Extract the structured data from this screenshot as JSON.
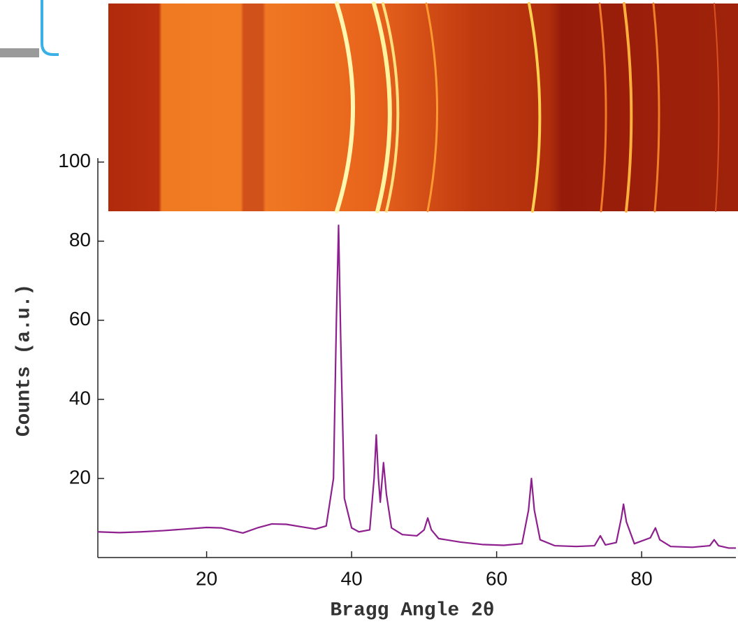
{
  "chart_data": {
    "type": "line",
    "x_label": "Bragg Angle 2θ",
    "y_label": "Counts (a.u.)",
    "color": "#8e1f8e",
    "x": [
      5,
      8,
      11,
      14,
      17,
      20,
      22,
      25,
      27,
      29,
      31,
      33,
      35,
      36.5,
      37.5,
      37.9,
      38.2,
      38.5,
      39,
      40,
      41,
      42.5,
      43.1,
      43.4,
      43.7,
      43.95,
      44.4,
      44.8,
      45.5,
      47,
      49,
      50,
      50.5,
      51,
      52,
      55,
      58,
      61,
      63.5,
      64.4,
      64.8,
      65.2,
      66,
      68,
      71,
      73.5,
      74.3,
      75,
      76.5,
      77.2,
      77.5,
      77.9,
      79,
      81.2,
      81.9,
      82.5,
      84,
      87,
      89.4,
      90,
      90.6,
      92,
      93
    ],
    "values": [
      6.5,
      6.3,
      6.5,
      6.8,
      7.2,
      7.6,
      7.5,
      6.2,
      7.5,
      8.5,
      8.4,
      7.8,
      7.2,
      8,
      20,
      60,
      84,
      55,
      15,
      7.5,
      6.5,
      7,
      20,
      31,
      20,
      14,
      24,
      16,
      7.5,
      5.8,
      5.5,
      7,
      10,
      7,
      4.8,
      3.9,
      3.3,
      3.1,
      3.5,
      12,
      20,
      12,
      4.5,
      3,
      2.8,
      3,
      5.5,
      3.2,
      3.8,
      10,
      13.5,
      9,
      3.5,
      5,
      7.5,
      4.5,
      2.8,
      2.6,
      3,
      4.5,
      3,
      2.4,
      2.4
    ],
    "xlim": [
      5,
      93
    ],
    "ylim": [
      0,
      101
    ],
    "xticks": [
      20,
      40,
      60,
      80
    ],
    "yticks": [
      20,
      40,
      60,
      80,
      100
    ]
  }
}
